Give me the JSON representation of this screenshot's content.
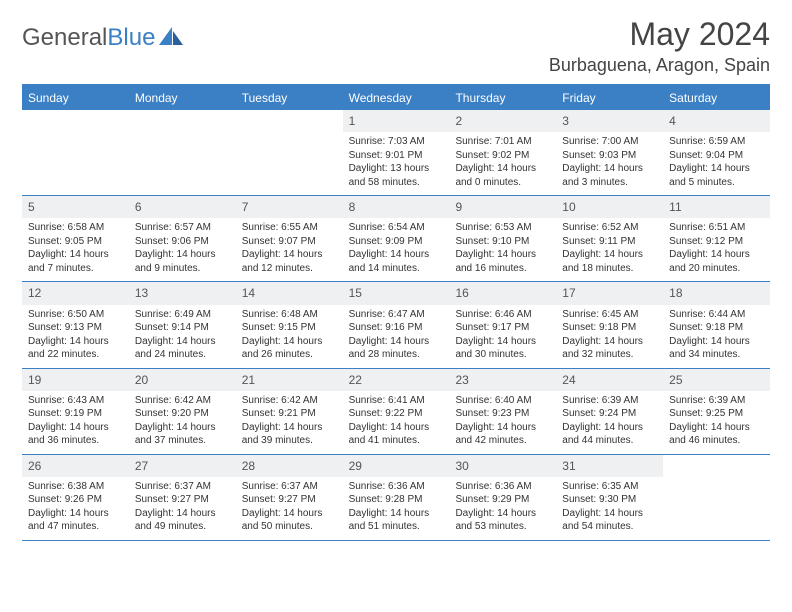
{
  "brand": {
    "part1": "General",
    "part2": "Blue"
  },
  "title": "May 2024",
  "location": "Burbaguena, Aragon, Spain",
  "colors": {
    "accent": "#3b7fc4",
    "header_bg": "#eff0f1",
    "text": "#333333",
    "title_text": "#444444"
  },
  "weekdays": [
    "Sunday",
    "Monday",
    "Tuesday",
    "Wednesday",
    "Thursday",
    "Friday",
    "Saturday"
  ],
  "weeks": [
    [
      null,
      null,
      null,
      {
        "n": "1",
        "sr": "Sunrise: 7:03 AM",
        "ss": "Sunset: 9:01 PM",
        "dl": "Daylight: 13 hours and 58 minutes."
      },
      {
        "n": "2",
        "sr": "Sunrise: 7:01 AM",
        "ss": "Sunset: 9:02 PM",
        "dl": "Daylight: 14 hours and 0 minutes."
      },
      {
        "n": "3",
        "sr": "Sunrise: 7:00 AM",
        "ss": "Sunset: 9:03 PM",
        "dl": "Daylight: 14 hours and 3 minutes."
      },
      {
        "n": "4",
        "sr": "Sunrise: 6:59 AM",
        "ss": "Sunset: 9:04 PM",
        "dl": "Daylight: 14 hours and 5 minutes."
      }
    ],
    [
      {
        "n": "5",
        "sr": "Sunrise: 6:58 AM",
        "ss": "Sunset: 9:05 PM",
        "dl": "Daylight: 14 hours and 7 minutes."
      },
      {
        "n": "6",
        "sr": "Sunrise: 6:57 AM",
        "ss": "Sunset: 9:06 PM",
        "dl": "Daylight: 14 hours and 9 minutes."
      },
      {
        "n": "7",
        "sr": "Sunrise: 6:55 AM",
        "ss": "Sunset: 9:07 PM",
        "dl": "Daylight: 14 hours and 12 minutes."
      },
      {
        "n": "8",
        "sr": "Sunrise: 6:54 AM",
        "ss": "Sunset: 9:09 PM",
        "dl": "Daylight: 14 hours and 14 minutes."
      },
      {
        "n": "9",
        "sr": "Sunrise: 6:53 AM",
        "ss": "Sunset: 9:10 PM",
        "dl": "Daylight: 14 hours and 16 minutes."
      },
      {
        "n": "10",
        "sr": "Sunrise: 6:52 AM",
        "ss": "Sunset: 9:11 PM",
        "dl": "Daylight: 14 hours and 18 minutes."
      },
      {
        "n": "11",
        "sr": "Sunrise: 6:51 AM",
        "ss": "Sunset: 9:12 PM",
        "dl": "Daylight: 14 hours and 20 minutes."
      }
    ],
    [
      {
        "n": "12",
        "sr": "Sunrise: 6:50 AM",
        "ss": "Sunset: 9:13 PM",
        "dl": "Daylight: 14 hours and 22 minutes."
      },
      {
        "n": "13",
        "sr": "Sunrise: 6:49 AM",
        "ss": "Sunset: 9:14 PM",
        "dl": "Daylight: 14 hours and 24 minutes."
      },
      {
        "n": "14",
        "sr": "Sunrise: 6:48 AM",
        "ss": "Sunset: 9:15 PM",
        "dl": "Daylight: 14 hours and 26 minutes."
      },
      {
        "n": "15",
        "sr": "Sunrise: 6:47 AM",
        "ss": "Sunset: 9:16 PM",
        "dl": "Daylight: 14 hours and 28 minutes."
      },
      {
        "n": "16",
        "sr": "Sunrise: 6:46 AM",
        "ss": "Sunset: 9:17 PM",
        "dl": "Daylight: 14 hours and 30 minutes."
      },
      {
        "n": "17",
        "sr": "Sunrise: 6:45 AM",
        "ss": "Sunset: 9:18 PM",
        "dl": "Daylight: 14 hours and 32 minutes."
      },
      {
        "n": "18",
        "sr": "Sunrise: 6:44 AM",
        "ss": "Sunset: 9:18 PM",
        "dl": "Daylight: 14 hours and 34 minutes."
      }
    ],
    [
      {
        "n": "19",
        "sr": "Sunrise: 6:43 AM",
        "ss": "Sunset: 9:19 PM",
        "dl": "Daylight: 14 hours and 36 minutes."
      },
      {
        "n": "20",
        "sr": "Sunrise: 6:42 AM",
        "ss": "Sunset: 9:20 PM",
        "dl": "Daylight: 14 hours and 37 minutes."
      },
      {
        "n": "21",
        "sr": "Sunrise: 6:42 AM",
        "ss": "Sunset: 9:21 PM",
        "dl": "Daylight: 14 hours and 39 minutes."
      },
      {
        "n": "22",
        "sr": "Sunrise: 6:41 AM",
        "ss": "Sunset: 9:22 PM",
        "dl": "Daylight: 14 hours and 41 minutes."
      },
      {
        "n": "23",
        "sr": "Sunrise: 6:40 AM",
        "ss": "Sunset: 9:23 PM",
        "dl": "Daylight: 14 hours and 42 minutes."
      },
      {
        "n": "24",
        "sr": "Sunrise: 6:39 AM",
        "ss": "Sunset: 9:24 PM",
        "dl": "Daylight: 14 hours and 44 minutes."
      },
      {
        "n": "25",
        "sr": "Sunrise: 6:39 AM",
        "ss": "Sunset: 9:25 PM",
        "dl": "Daylight: 14 hours and 46 minutes."
      }
    ],
    [
      {
        "n": "26",
        "sr": "Sunrise: 6:38 AM",
        "ss": "Sunset: 9:26 PM",
        "dl": "Daylight: 14 hours and 47 minutes."
      },
      {
        "n": "27",
        "sr": "Sunrise: 6:37 AM",
        "ss": "Sunset: 9:27 PM",
        "dl": "Daylight: 14 hours and 49 minutes."
      },
      {
        "n": "28",
        "sr": "Sunrise: 6:37 AM",
        "ss": "Sunset: 9:27 PM",
        "dl": "Daylight: 14 hours and 50 minutes."
      },
      {
        "n": "29",
        "sr": "Sunrise: 6:36 AM",
        "ss": "Sunset: 9:28 PM",
        "dl": "Daylight: 14 hours and 51 minutes."
      },
      {
        "n": "30",
        "sr": "Sunrise: 6:36 AM",
        "ss": "Sunset: 9:29 PM",
        "dl": "Daylight: 14 hours and 53 minutes."
      },
      {
        "n": "31",
        "sr": "Sunrise: 6:35 AM",
        "ss": "Sunset: 9:30 PM",
        "dl": "Daylight: 14 hours and 54 minutes."
      },
      null
    ]
  ]
}
